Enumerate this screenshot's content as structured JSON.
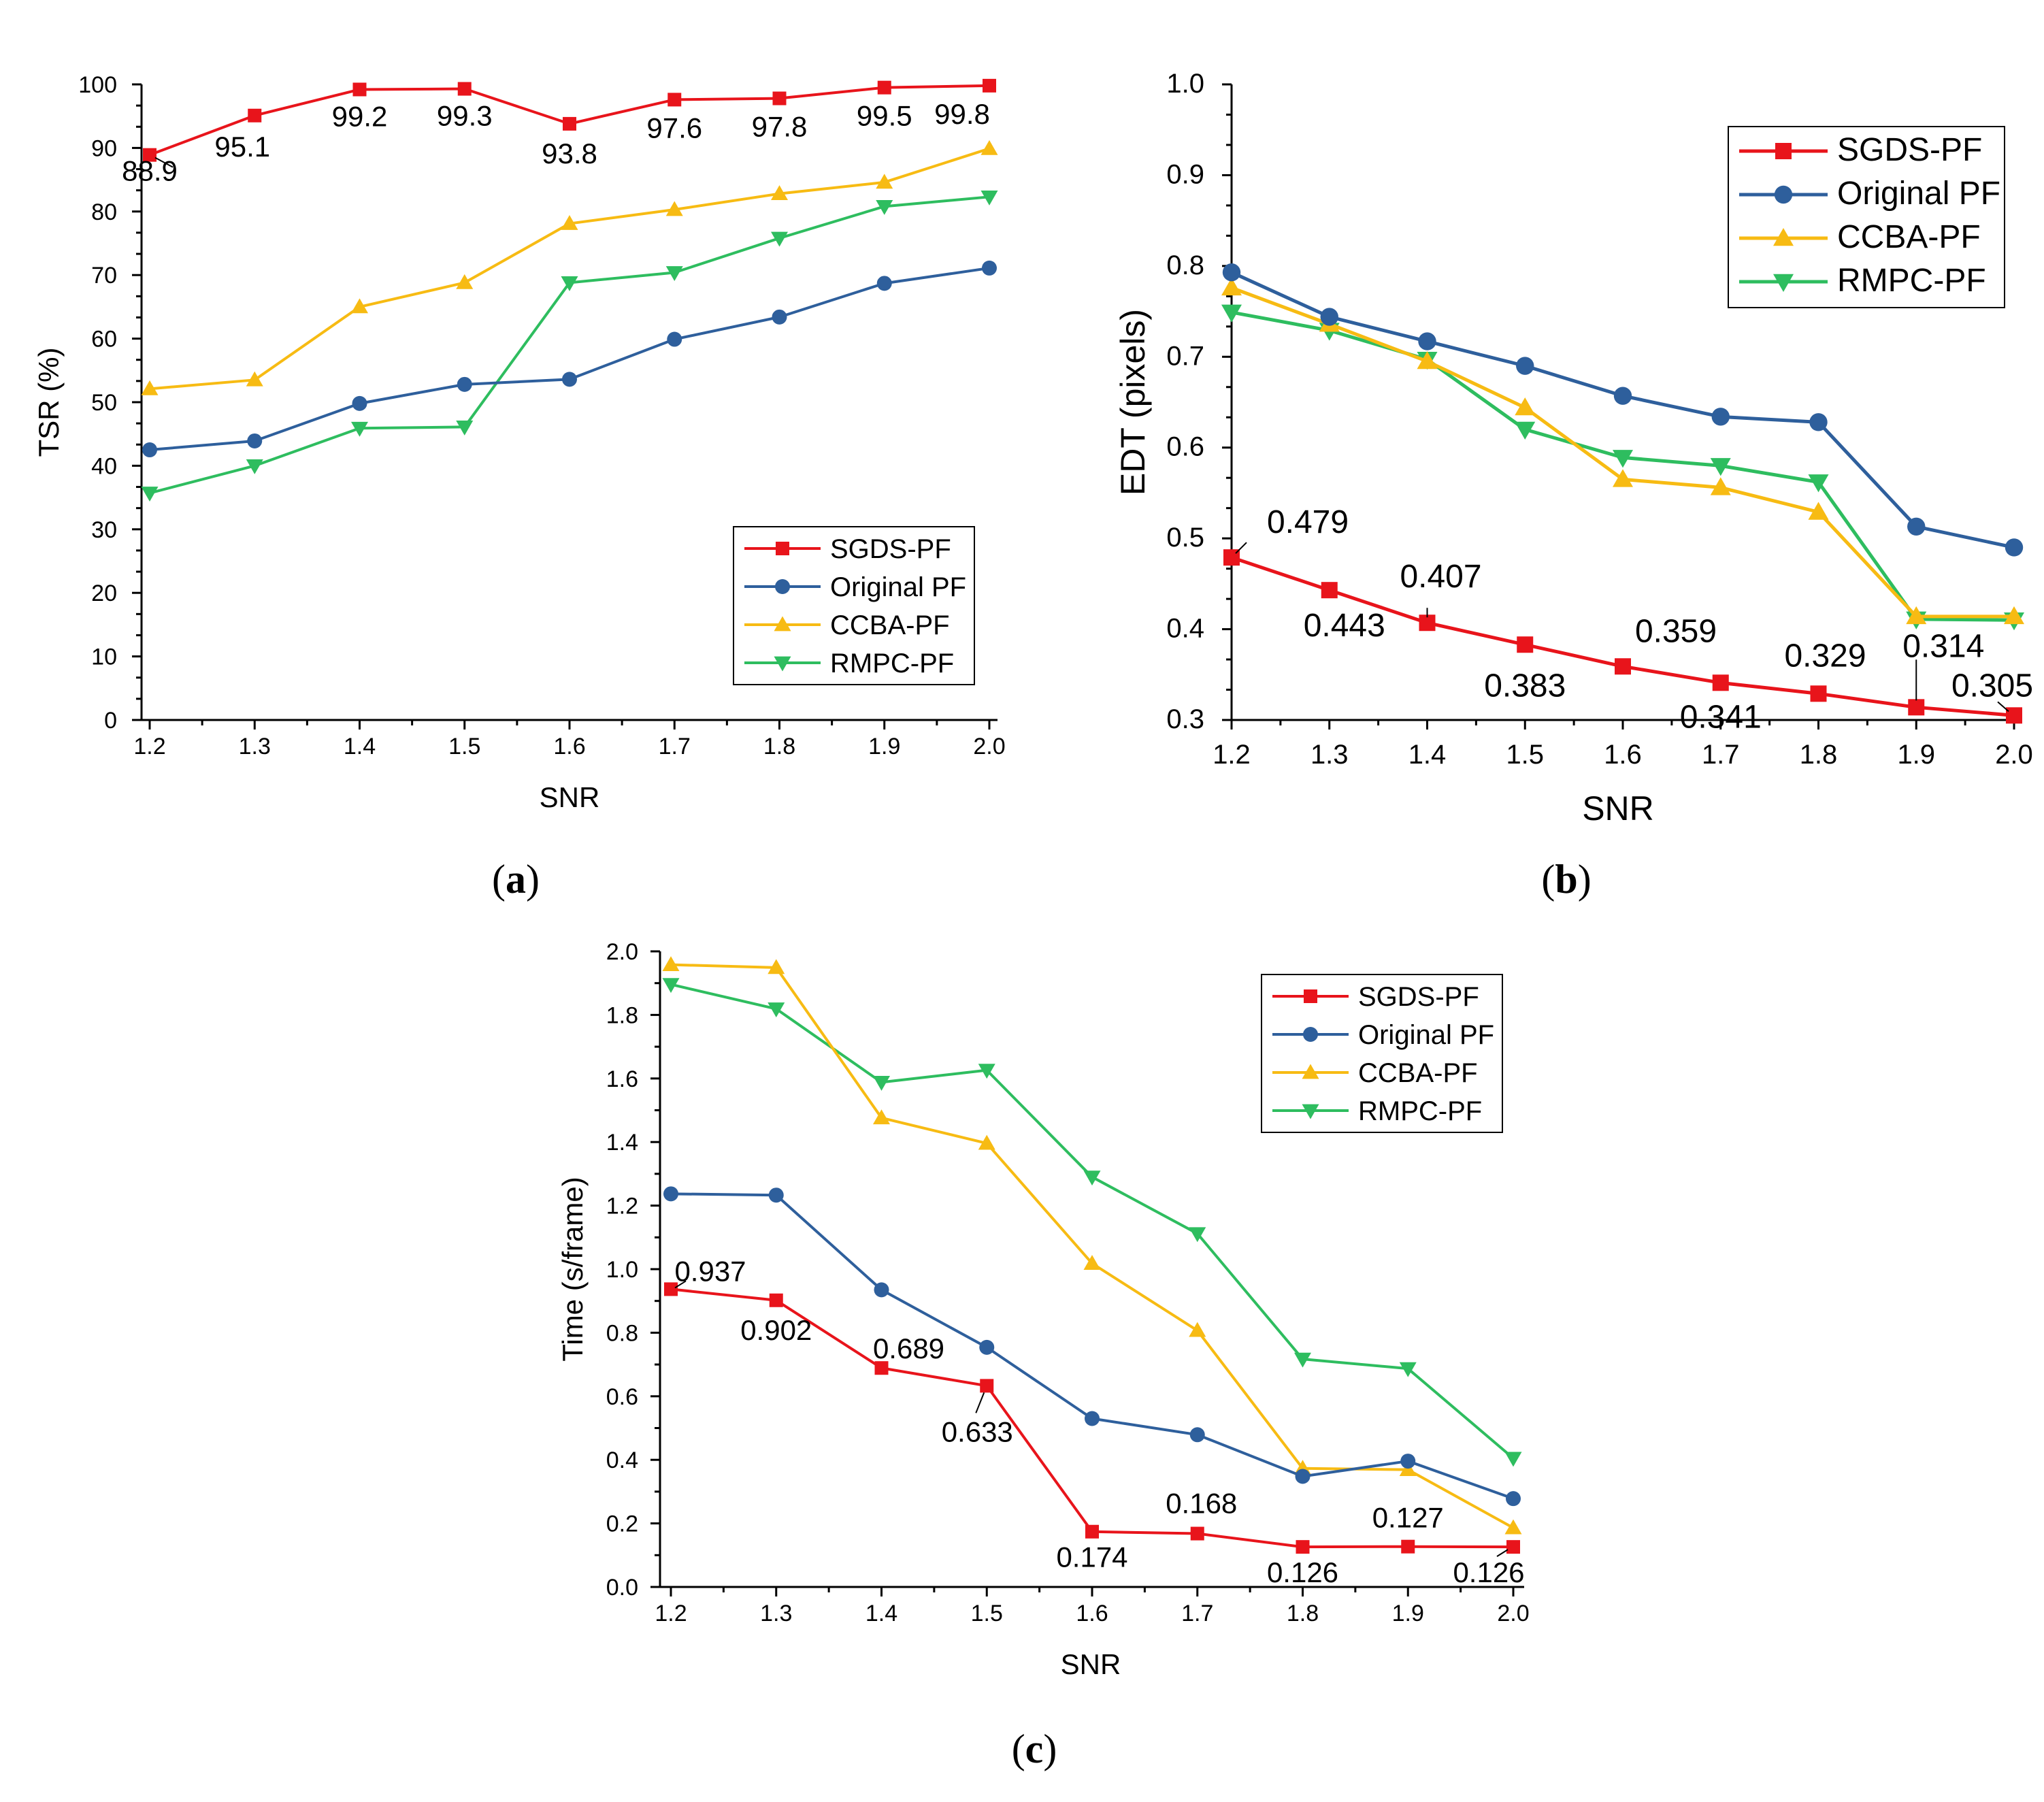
{
  "panel_labels": [
    {
      "open": "(",
      "letter": "a",
      "close": ")"
    },
    {
      "open": "(",
      "letter": "b",
      "close": ")"
    },
    {
      "open": "(",
      "letter": "c",
      "close": ")"
    }
  ],
  "colors": {
    "SGDS-PF": "#e8141b",
    "Original PF": "#2e5f9c",
    "CCBA-PF": "#f7bb13",
    "RMPC-PF": "#2ebd5f"
  },
  "chart_data": [
    {
      "type": "line",
      "panel": "a",
      "xlabel": "SNR",
      "ylabel": "TSR (%)",
      "x": [
        1.2,
        1.3,
        1.4,
        1.5,
        1.6,
        1.7,
        1.8,
        1.9,
        2.0
      ],
      "x_tick_labels": [
        "1.2",
        "1.3",
        "1.4",
        "1.5",
        "1.6",
        "1.7",
        "1.8",
        "1.9",
        "2.0"
      ],
      "ylim": [
        0,
        100
      ],
      "y_tick_labels": [
        "0",
        "10",
        "20",
        "30",
        "40",
        "50",
        "60",
        "70",
        "80",
        "90",
        "100"
      ],
      "legend_position": "bottom-right",
      "series": [
        {
          "name": "SGDS-PF",
          "marker": "square",
          "values": [
            88.9,
            95.1,
            99.2,
            99.3,
            93.8,
            97.6,
            97.8,
            99.5,
            99.8
          ]
        },
        {
          "name": "Original PF",
          "marker": "circle",
          "values": [
            42.5,
            43.9,
            49.8,
            52.8,
            53.6,
            59.9,
            63.4,
            68.7,
            71.1
          ]
        },
        {
          "name": "CCBA-PF",
          "marker": "triangle-up",
          "values": [
            52.1,
            53.5,
            65.0,
            68.8,
            78.1,
            80.3,
            82.8,
            84.6,
            89.9
          ]
        },
        {
          "name": "RMPC-PF",
          "marker": "triangle-down",
          "values": [
            35.7,
            40.0,
            45.9,
            46.1,
            68.8,
            70.4,
            75.8,
            80.8,
            82.3
          ]
        }
      ],
      "annotations": [
        "88.9",
        "95.1",
        "99.2",
        "99.3",
        "93.8",
        "97.6",
        "97.8",
        "99.5",
        "99.8"
      ]
    },
    {
      "type": "line",
      "panel": "b",
      "xlabel": "SNR",
      "ylabel": "EDT (pixels)",
      "x": [
        1.2,
        1.3,
        1.4,
        1.5,
        1.6,
        1.7,
        1.8,
        1.9,
        2.0
      ],
      "x_tick_labels": [
        "1.2",
        "1.3",
        "1.4",
        "1.5",
        "1.6",
        "1.7",
        "1.8",
        "1.9",
        "2.0"
      ],
      "ylim": [
        0.3,
        1.0
      ],
      "y_tick_labels": [
        "0.3",
        "0.4",
        "0.5",
        "0.6",
        "0.7",
        "0.8",
        "0.9",
        "1.0"
      ],
      "legend_position": "top-right",
      "series": [
        {
          "name": "SGDS-PF",
          "marker": "square",
          "values": [
            0.479,
            0.443,
            0.407,
            0.383,
            0.359,
            0.341,
            0.329,
            0.314,
            0.305
          ]
        },
        {
          "name": "Original PF",
          "marker": "circle",
          "values": [
            0.793,
            0.744,
            0.717,
            0.69,
            0.657,
            0.634,
            0.628,
            0.513,
            0.49
          ]
        },
        {
          "name": "CCBA-PF",
          "marker": "triangle-up",
          "values": [
            0.776,
            0.736,
            0.695,
            0.644,
            0.565,
            0.556,
            0.529,
            0.414,
            0.414
          ]
        },
        {
          "name": "RMPC-PF",
          "marker": "triangle-down",
          "values": [
            0.749,
            0.729,
            0.697,
            0.62,
            0.589,
            0.58,
            0.562,
            0.411,
            0.41
          ]
        }
      ],
      "annotations": [
        "0.479",
        "0.443",
        "0.407",
        "0.383",
        "0.359",
        "0.341",
        "0.329",
        "0.314",
        "0.305"
      ]
    },
    {
      "type": "line",
      "panel": "c",
      "xlabel": "SNR",
      "ylabel": "Time (s/frame)",
      "x": [
        1.2,
        1.3,
        1.4,
        1.5,
        1.6,
        1.7,
        1.8,
        1.9,
        2.0
      ],
      "x_tick_labels": [
        "1.2",
        "1.3",
        "1.4",
        "1.5",
        "1.6",
        "1.7",
        "1.8",
        "1.9",
        "2.0"
      ],
      "ylim": [
        0.0,
        2.0
      ],
      "y_tick_labels": [
        "0.0",
        "0.2",
        "0.4",
        "0.6",
        "0.8",
        "1.0",
        "1.2",
        "1.4",
        "1.6",
        "1.8",
        "2.0"
      ],
      "legend_position": "top-right",
      "series": [
        {
          "name": "SGDS-PF",
          "marker": "square",
          "values": [
            0.937,
            0.902,
            0.689,
            0.633,
            0.174,
            0.168,
            0.126,
            0.127,
            0.126
          ]
        },
        {
          "name": "Original PF",
          "marker": "circle",
          "values": [
            1.237,
            1.233,
            0.935,
            0.754,
            0.53,
            0.479,
            0.348,
            0.396,
            0.278
          ]
        },
        {
          "name": "CCBA-PF",
          "marker": "triangle-up",
          "values": [
            1.958,
            1.949,
            1.476,
            1.396,
            1.018,
            0.807,
            0.373,
            0.369,
            0.186
          ]
        },
        {
          "name": "RMPC-PF",
          "marker": "triangle-down",
          "values": [
            1.896,
            1.819,
            1.588,
            1.626,
            1.29,
            1.112,
            0.717,
            0.687,
            0.405
          ]
        }
      ],
      "annotations": [
        "0.937",
        "0.902",
        "0.689",
        "0.633",
        "0.174",
        "0.168",
        "0.126",
        "0.127",
        "0.126"
      ]
    }
  ]
}
